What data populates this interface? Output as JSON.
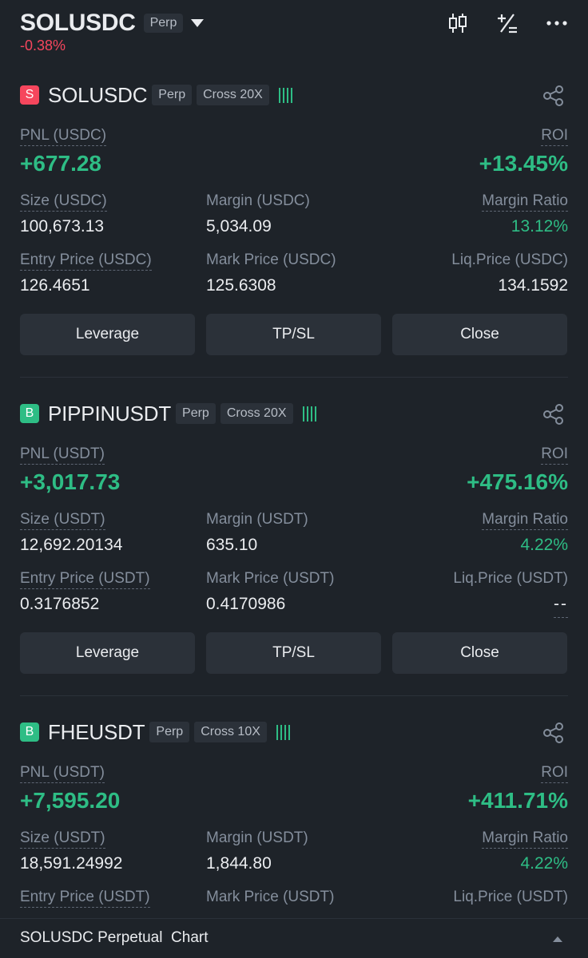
{
  "header": {
    "symbol": "SOLUSDC",
    "tag": "Perp",
    "change": "-0.38%",
    "icons": [
      "candlestick-chart-icon",
      "plus-minus-icon",
      "more-icon"
    ]
  },
  "positions": [
    {
      "side": "S",
      "symbol": "SOLUSDC",
      "tag": "Perp",
      "margin_mode": "Cross 20X",
      "pnl_label": "PNL (USDC)",
      "pnl": "+677.28",
      "roi_label": "ROI",
      "roi": "+13.45%",
      "size_label": "Size (USDC)",
      "size": "100,673.13",
      "margin_label": "Margin (USDC)",
      "margin": "5,034.09",
      "margin_ratio_label": "Margin Ratio",
      "margin_ratio": "13.12%",
      "entry_label": "Entry Price (USDC)",
      "entry": "126.4651",
      "mark_label": "Mark Price (USDC)",
      "mark": "125.6308",
      "liq_label": "Liq.Price (USDC)",
      "liq": "134.1592",
      "buttons": [
        "Leverage",
        "TP/SL",
        "Close"
      ]
    },
    {
      "side": "B",
      "symbol": "PIPPINUSDT",
      "tag": "Perp",
      "margin_mode": "Cross 20X",
      "pnl_label": "PNL (USDT)",
      "pnl": "+3,017.73",
      "roi_label": "ROI",
      "roi": "+475.16%",
      "size_label": "Size (USDT)",
      "size": "12,692.20134",
      "margin_label": "Margin (USDT)",
      "margin": "635.10",
      "margin_ratio_label": "Margin Ratio",
      "margin_ratio": "4.22%",
      "entry_label": "Entry Price (USDT)",
      "entry": "0.3176852",
      "mark_label": "Mark Price (USDT)",
      "mark": "0.4170986",
      "liq_label": "Liq.Price (USDT)",
      "liq": "--",
      "buttons": [
        "Leverage",
        "TP/SL",
        "Close"
      ]
    },
    {
      "side": "B",
      "symbol": "FHEUSDT",
      "tag": "Perp",
      "margin_mode": "Cross 10X",
      "pnl_label": "PNL (USDT)",
      "pnl": "+7,595.20",
      "roi_label": "ROI",
      "roi": "+411.71%",
      "size_label": "Size (USDT)",
      "size": "18,591.24992",
      "margin_label": "Margin (USDT)",
      "margin": "1,844.80",
      "margin_ratio_label": "Margin Ratio",
      "margin_ratio": "4.22%",
      "entry_label": "Entry Price (USDT)",
      "mark_label": "Mark Price (USDT)",
      "liq_label": "Liq.Price (USDT)"
    }
  ],
  "bottom_bar": {
    "label": "SOLUSDC Perpetual  Chart"
  },
  "colors": {
    "background": "#1e2329",
    "panel": "#2b3139",
    "positive": "#2ebd85",
    "negative": "#f6465d",
    "muted": "#848e9c"
  }
}
